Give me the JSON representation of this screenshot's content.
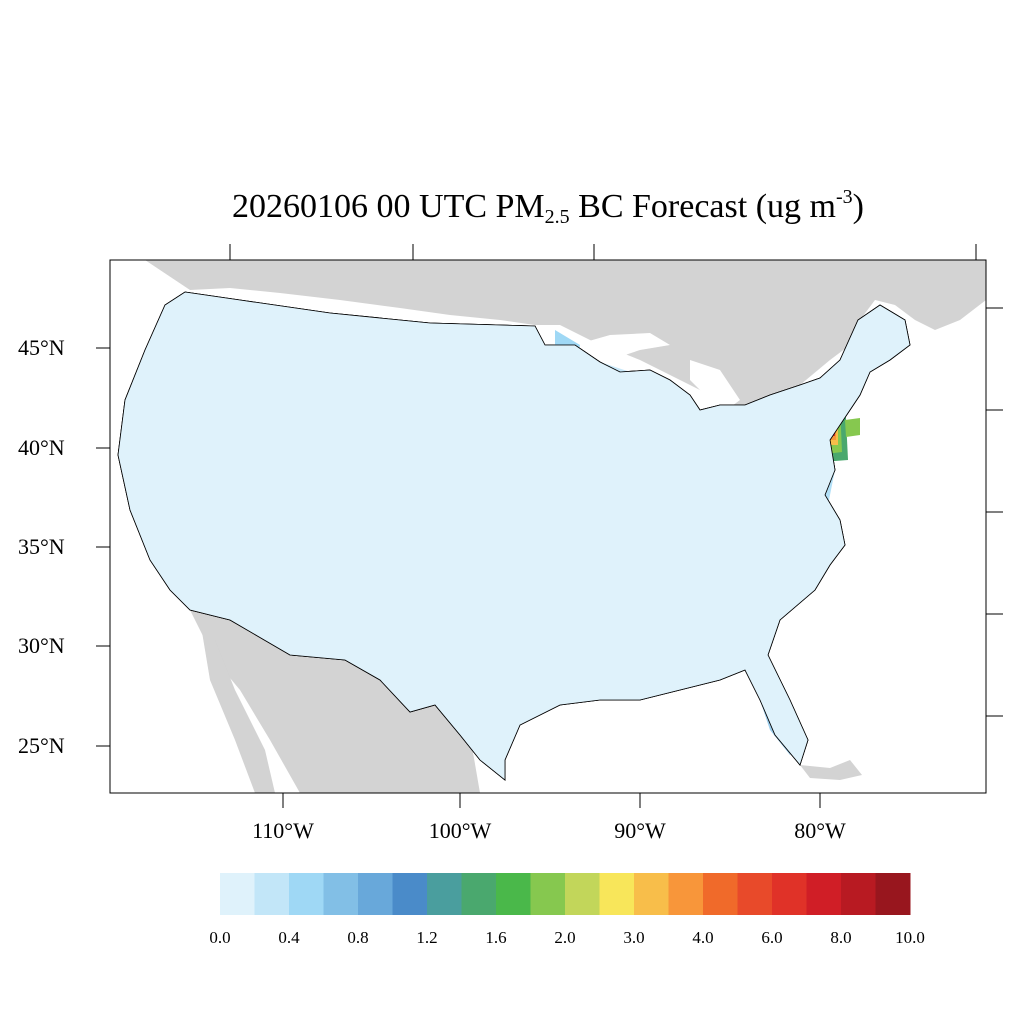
{
  "title": {
    "main": "20260106 00 UTC PM",
    "sub": "2.5",
    "mid": " BC Forecast (ug m",
    "sup": "-3",
    "end": ")"
  },
  "map": {
    "lat_labels": [
      "45°N",
      "40°N",
      "35°N",
      "30°N",
      "25°N"
    ],
    "lon_labels": [
      "110°W",
      "100°W",
      "90°W",
      "80°W"
    ],
    "land_color": "#d3d3d3",
    "water_color": "#ffffff",
    "county_border_color": "#000000"
  },
  "colorbar": {
    "colors": [
      "#dff2fb",
      "#c2e6f8",
      "#9fd8f5",
      "#82bfe6",
      "#68a8da",
      "#4a8bc9",
      "#4a9e9e",
      "#4aa86e",
      "#4ab84a",
      "#86c84f",
      "#c2d65a",
      "#f8e65a",
      "#f8be4a",
      "#f8963a",
      "#f06a2a",
      "#e84a2a",
      "#e03228",
      "#d01e26",
      "#b81a22",
      "#98161e"
    ],
    "labels": [
      "0.0",
      "0.4",
      "0.8",
      "1.2",
      "1.6",
      "2.0",
      "3.0",
      "4.0",
      "6.0",
      "8.0",
      "10.0"
    ]
  }
}
